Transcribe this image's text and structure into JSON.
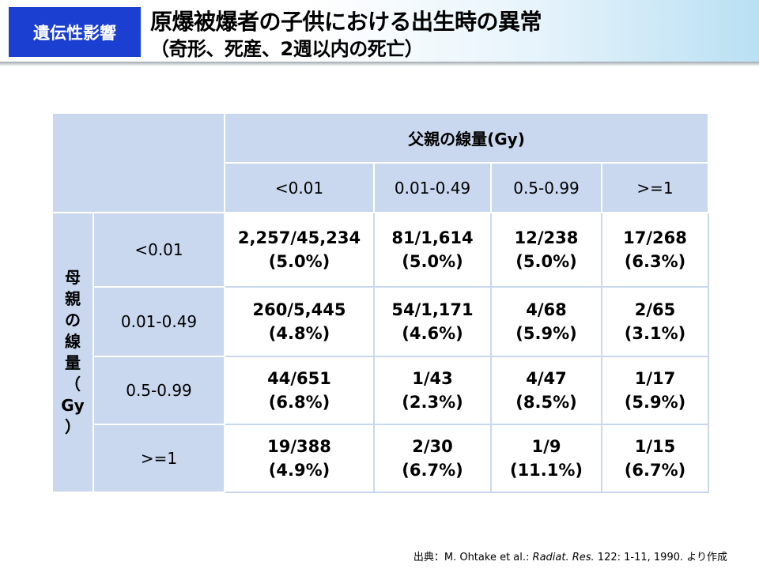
{
  "header": {
    "badge": "遺伝性影響",
    "title_line1": "原爆被爆者の子供における出生時の異常",
    "title_line2": "（奇形、死産、2週以内の死亡）"
  },
  "table": {
    "father_label": "父親の線量(Gy)",
    "mother_label_chars": [
      "母",
      "親",
      "の",
      "線",
      "量",
      "（",
      "Gy",
      "）"
    ],
    "col_headers": [
      "<0.01",
      "0.01-0.49",
      "0.5-0.99",
      ">=1"
    ],
    "rows": [
      {
        "label": "<0.01",
        "cells": [
          {
            "count": "2,257/45,234",
            "pct": "(5.0%)"
          },
          {
            "count": "81/1,614",
            "pct": "(5.0%)"
          },
          {
            "count": "12/238",
            "pct": "(5.0%)"
          },
          {
            "count": "17/268",
            "pct": "(6.3%)"
          }
        ]
      },
      {
        "label": "0.01-0.49",
        "cells": [
          {
            "count": "260/5,445",
            "pct": "(4.8%)"
          },
          {
            "count": "54/1,171",
            "pct": "(4.6%)"
          },
          {
            "count": "4/68",
            "pct": "(5.9%)"
          },
          {
            "count": "2/65",
            "pct": "(3.1%)"
          }
        ]
      },
      {
        "label": "0.5-0.99",
        "cells": [
          {
            "count": "44/651",
            "pct": "(6.8%)"
          },
          {
            "count": "1/43",
            "pct": "(2.3%)"
          },
          {
            "count": "4/47",
            "pct": "(8.5%)"
          },
          {
            "count": "1/17",
            "pct": "(5.9%)"
          }
        ]
      },
      {
        "label": ">=1",
        "cells": [
          {
            "count": "19/388",
            "pct": "(4.9%)"
          },
          {
            "count": "2/30",
            "pct": "(6.7%)"
          },
          {
            "count": "1/9",
            "pct": "(11.1%)"
          },
          {
            "count": "1/15",
            "pct": "(6.7%)"
          }
        ]
      }
    ]
  },
  "source": {
    "prefix": "出典：M. Ohtake et al.: ",
    "journal": "Radiat. Res.",
    "suffix": " 122: 1-11, 1990. より作成"
  }
}
